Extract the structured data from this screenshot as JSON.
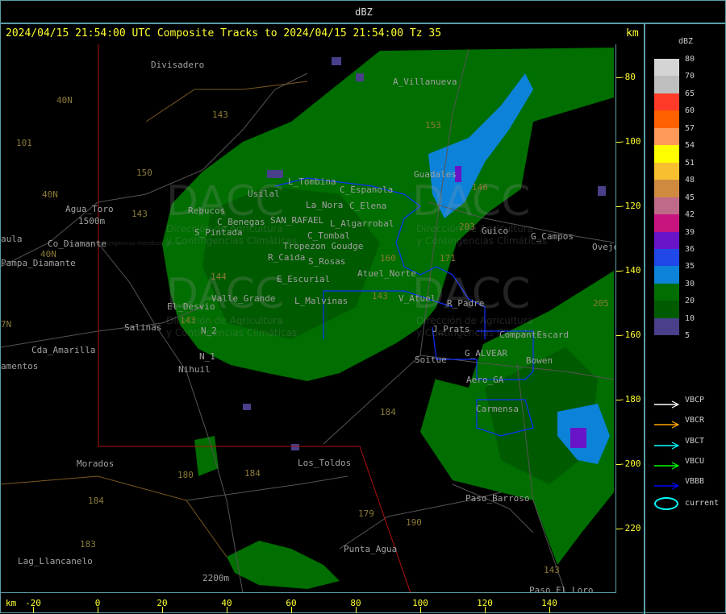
{
  "window": {
    "title": "dBZ"
  },
  "header": {
    "text": "2024/04/15 21:54:00 UTC Composite Tracks to 2024/04/15 21:54:00 Tz 35",
    "km_label": "km"
  },
  "axes": {
    "x_unit": "km",
    "y_unit": "km",
    "x_ticks": [
      "-20",
      "0",
      "20",
      "40",
      "60",
      "80",
      "100",
      "120",
      "140"
    ],
    "y_ticks": [
      "-80",
      "-100",
      "-120",
      "-140",
      "-160",
      "-180",
      "-200",
      "-220"
    ]
  },
  "places": [
    "Divisadero",
    "A_Villanueva",
    "Agua_Toro",
    "Co_Diamante",
    "Pampa_Diamante",
    "aula",
    "Rebucos",
    "S_Pintada",
    "C_Benegas",
    "SAN_RAFAEL",
    "L_Tombina",
    "Usilal",
    "C_Espanola",
    "La_Nora",
    "C_Elena",
    "L_Algarrobal",
    "C_Tombal",
    "Tropezon Goudge",
    "R_Caida",
    "S_Rosas",
    "Atuel_Norte",
    "E_Escurial",
    "Valle_Grande",
    "L_Malvinas",
    "El_Desvio",
    "Salinas",
    "N_2",
    "N_1",
    "Nihuil",
    "Cda_Amarilla",
    "amentos",
    "Guadales",
    "Guico",
    "G_Campos",
    "Oveje",
    "V_Atuel",
    "R_Padre",
    "J_Prats",
    "CompantEscard",
    "G_ALVEAR",
    "Soitue",
    "Bowen",
    "Aero_GA",
    "Carmensa",
    "Morados",
    "Los_Toldos",
    "Paso_Barroso",
    "Punta_Agua",
    "Lag_Llancanelo",
    "Paso_El_Loro",
    "2200m",
    "1500m"
  ],
  "roads": [
    "40N",
    "101",
    "40N",
    "40N",
    "143",
    "150",
    "144",
    "153",
    "146",
    "203",
    "171",
    "160",
    "143",
    "205",
    "184",
    "180",
    "184",
    "184",
    "183",
    "179",
    "190",
    "143",
    "143",
    "143",
    "7N"
  ],
  "watermark": {
    "logo": "DACC",
    "line1": "Dirección de Agricultura",
    "line2": "y Contingencias Climáticas",
    "url": "http://www.contingencias.mendoza.gov.ar"
  },
  "legend": {
    "title": "dBZ",
    "levels": [
      "80",
      "70",
      "65",
      "60",
      "57",
      "54",
      "51",
      "48",
      "45",
      "42",
      "39",
      "36",
      "35",
      "30",
      "20",
      "10",
      "5"
    ],
    "colors": [
      "#d4d4d4",
      "#bebebe",
      "#ff3a28",
      "#ff6000",
      "#ff9a5a",
      "#ffff00",
      "#f8c030",
      "#d08a40",
      "#c06a8a",
      "#c8147e",
      "#6a14c8",
      "#2048e8",
      "#0c82d8",
      "#006e00",
      "#005a00",
      "#48408a"
    ],
    "tracks": [
      {
        "label": "VBCP",
        "color": "#ffffff"
      },
      {
        "label": "VBCR",
        "color": "#ffa500"
      },
      {
        "label": "VBCT",
        "color": "#00ffff"
      },
      {
        "label": "VBCU",
        "color": "#00ff00"
      },
      {
        "label": "VBBB",
        "color": "#0000ff"
      }
    ],
    "current_label": "current",
    "current_color": "#00ffff"
  }
}
